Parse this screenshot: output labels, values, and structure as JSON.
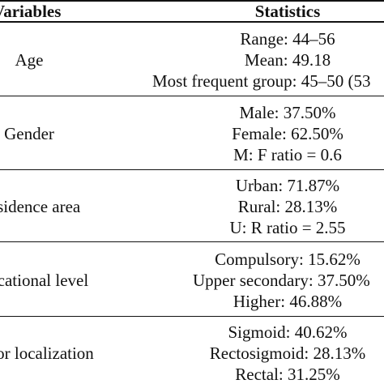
{
  "header": {
    "variables_label": "Variables",
    "statistics_label": "Statistics"
  },
  "rows": [
    {
      "variable": "Age",
      "stats": [
        "Range: 44–56",
        "Mean: 49.18",
        "Most frequent group: 45–50 (53"
      ]
    },
    {
      "variable": "Gender",
      "stats": [
        "Male: 37.50%",
        "Female: 62.50%",
        "M: F ratio = 0.6"
      ]
    },
    {
      "variable": "Residence area",
      "stats": [
        "Urban: 71.87%",
        "Rural: 28.13%",
        "U: R ratio = 2.55"
      ]
    },
    {
      "variable": "Educational level",
      "stats": [
        "Compulsory: 15.62%",
        "Upper secondary: 37.50%",
        "Higher: 46.88%"
      ]
    },
    {
      "variable": "Tumor localization",
      "stats": [
        "Sigmoid: 40.62%",
        "Rectosigmoid: 28.13%",
        "Rectal: 31.25%"
      ]
    }
  ]
}
